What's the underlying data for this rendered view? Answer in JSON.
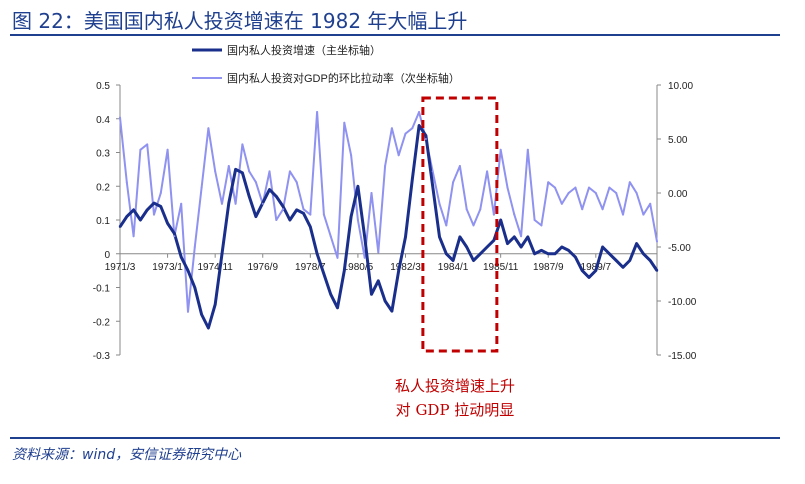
{
  "title": "图 22：美国国内私人投资增速在 1982 年大幅上升",
  "source": "资料来源：wind，安信证券研究中心",
  "annotation": {
    "line1": "私人投资增速上升",
    "line2": "对 GDP 拉动明显"
  },
  "colors": {
    "primary": "#1f3f8f",
    "series1": "#1a2f8c",
    "series2": "#8f92f0",
    "annotation": "#c00000",
    "axis": "#888888"
  },
  "chart_data": {
    "type": "line",
    "title": "图 22：美国国内私人投资增速在 1982 年大幅上升",
    "x_tick_labels": [
      "1971/3",
      "1973/1",
      "1974/11",
      "1976/9",
      "1978/7",
      "1980/5",
      "1982/3",
      "1984/1",
      "1985/11",
      "1987/9",
      "1989/7"
    ],
    "x_start": "1971Q1",
    "x_end": "1990Q4",
    "frequency": "quarterly",
    "y_left": {
      "ylim": [
        -0.3,
        0.5
      ],
      "ticks": [
        "-0.3",
        "-0.2",
        "-0.1",
        "0",
        "0.1",
        "0.2",
        "0.3",
        "0.4",
        "0.5"
      ]
    },
    "y_right": {
      "ylim": [
        -15,
        10
      ],
      "ticks": [
        "-15.00",
        "-10.00",
        "-5.00",
        "0.00",
        "5.00",
        "10.00"
      ]
    },
    "legend_position": "top-center",
    "highlight_range": [
      "1982Q2",
      "1984Q4"
    ],
    "series": [
      {
        "name": "国内私人投资增速（主坐标轴）",
        "axis": "left",
        "values": [
          0.08,
          0.11,
          0.13,
          0.1,
          0.13,
          0.15,
          0.14,
          0.09,
          0.06,
          -0.01,
          -0.05,
          -0.1,
          -0.18,
          -0.22,
          -0.15,
          0.0,
          0.15,
          0.25,
          0.24,
          0.17,
          0.11,
          0.15,
          0.19,
          0.17,
          0.14,
          0.1,
          0.13,
          0.12,
          0.08,
          0.0,
          -0.06,
          -0.12,
          -0.16,
          -0.05,
          0.11,
          0.2,
          0.05,
          -0.12,
          -0.08,
          -0.14,
          -0.17,
          -0.05,
          0.05,
          0.22,
          0.38,
          0.35,
          0.2,
          0.05,
          0.0,
          -0.02,
          0.05,
          0.02,
          -0.02,
          0.0,
          0.02,
          0.04,
          0.1,
          0.03,
          0.05,
          0.02,
          0.05,
          0.0,
          0.01,
          0.0,
          0.0,
          0.02,
          0.01,
          -0.01,
          -0.05,
          -0.07,
          -0.05,
          0.02,
          0.0,
          -0.02,
          -0.04,
          -0.02,
          0.03,
          0.0,
          -0.02,
          -0.05
        ]
      },
      {
        "name": "国内私人投资对GDP的环比拉动率（次坐标轴）",
        "axis": "right",
        "values": [
          7.0,
          1.0,
          -4.0,
          4.0,
          4.5,
          -2.0,
          0.0,
          4.0,
          -4.0,
          -1.0,
          -11.0,
          -5.0,
          0.5,
          6.0,
          2.0,
          -1.0,
          2.5,
          -1.0,
          4.5,
          2.0,
          1.0,
          -1.0,
          2.0,
          -2.5,
          -1.5,
          2.0,
          1.0,
          -1.5,
          -2.0,
          7.5,
          -2.0,
          -4.0,
          -6.0,
          6.5,
          3.5,
          -2.5,
          -6.0,
          0.0,
          -5.5,
          2.5,
          6.0,
          3.5,
          5.5,
          6.0,
          7.5,
          5.0,
          2.0,
          -1.0,
          -3.0,
          1.0,
          2.5,
          -1.5,
          -3.0,
          -1.5,
          2.0,
          -2.0,
          4.0,
          0.5,
          -2.0,
          -4.0,
          4.0,
          -2.5,
          -3.0,
          1.0,
          0.5,
          -1.0,
          0.0,
          0.5,
          -1.5,
          0.5,
          0.0,
          -1.5,
          0.5,
          0.0,
          -2.0,
          1.0,
          0.0,
          -2.0,
          -1.0,
          -4.5
        ]
      }
    ]
  }
}
